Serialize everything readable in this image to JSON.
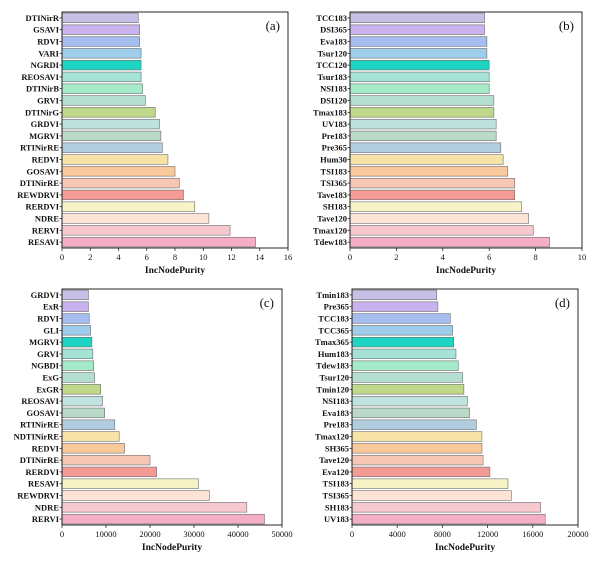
{
  "chart_data": [
    {
      "type": "bar",
      "orientation": "horizontal",
      "panel_label": "(a)",
      "xlabel": "IncNodePurity",
      "xlim": [
        0,
        16
      ],
      "xticks": [
        "0",
        "2",
        "4",
        "6",
        "8",
        "10",
        "12",
        "14",
        "16"
      ],
      "categories": [
        "DTINirR",
        "GSAVI",
        "RDVI",
        "VARI",
        "NGRDI",
        "REOSAVI",
        "DTINirB",
        "GRVI",
        "DTINirG",
        "GRDVI",
        "MGRVI",
        "RTINirRE",
        "REDVI",
        "GOSAVI",
        "DTINirRE",
        "REWDRVI",
        "RERDVI",
        "NDRE",
        "RERVI",
        "RESAVI"
      ],
      "values": [
        5.4,
        5.5,
        5.5,
        5.6,
        5.6,
        5.6,
        5.7,
        5.9,
        6.6,
        6.9,
        7.0,
        7.1,
        7.5,
        8.0,
        8.3,
        8.6,
        9.4,
        10.4,
        11.9,
        13.7
      ],
      "colors": [
        "#c7c0e6",
        "#c9b2ee",
        "#a6bdf0",
        "#9fcdec",
        "#1ed4c3",
        "#a6e3d6",
        "#a6ebc9",
        "#b4dfd0",
        "#bfd88a",
        "#bfe2de",
        "#bbd9c9",
        "#b3cde0",
        "#f8e3a7",
        "#f9c89b",
        "#f7c7b5",
        "#f39b94",
        "#f8f3c6",
        "#fde3d4",
        "#f6c9cf",
        "#f4aec6"
      ]
    },
    {
      "type": "bar",
      "orientation": "horizontal",
      "panel_label": "(b)",
      "xlabel": "IncNodePurity",
      "xlim": [
        0,
        10
      ],
      "xticks": [
        "0",
        "2",
        "4",
        "6",
        "8",
        "10"
      ],
      "categories": [
        "TCC183",
        "DSI365",
        "Eva183",
        "Tsur120",
        "TCC120",
        "Tsur183",
        "NSI183",
        "DSI120",
        "Tmax183",
        "UV183",
        "Pre183",
        "Pre365",
        "Hum30",
        "TSI183",
        "TSI365",
        "Tave183",
        "SH183",
        "Tave120",
        "Tmax120",
        "Tdew183"
      ],
      "values": [
        5.8,
        5.8,
        5.9,
        5.9,
        6.0,
        6.0,
        6.0,
        6.2,
        6.2,
        6.3,
        6.3,
        6.5,
        6.6,
        6.8,
        7.1,
        7.1,
        7.4,
        7.7,
        7.9,
        8.6
      ],
      "colors": [
        "#c7c0e6",
        "#c9b2ee",
        "#a6bdf0",
        "#9fcdec",
        "#1ed4c3",
        "#a6e3d6",
        "#a6ebc9",
        "#b4dfd0",
        "#bfd88a",
        "#bfe2de",
        "#bbd9c9",
        "#b3cde0",
        "#f8e3a7",
        "#f9c89b",
        "#f7c7b5",
        "#f39b94",
        "#f8f3c6",
        "#fde3d4",
        "#f6c9cf",
        "#f4aec6"
      ]
    },
    {
      "type": "bar",
      "orientation": "horizontal",
      "panel_label": "(c)",
      "xlabel": "IncNodePurity",
      "xlim": [
        0,
        50000
      ],
      "xticks": [
        "0",
        "10000",
        "20000",
        "30000",
        "40000",
        "50000"
      ],
      "categories": [
        "GRDVI",
        "ExR",
        "RDVI",
        "GLI",
        "MGRVI",
        "GRVI",
        "NGBDI",
        "ExG",
        "ExGR",
        "REOSAVI",
        "GOSAVI",
        "RTINirRE",
        "NDTINirRE",
        "REDVI",
        "DTINirRE",
        "RERDVI",
        "RESAVI",
        "REWDRVI",
        "NDRE",
        "RERVI"
      ],
      "values": [
        6000,
        6000,
        6200,
        6500,
        6800,
        7000,
        7200,
        7400,
        8800,
        9200,
        9700,
        12000,
        13000,
        14200,
        20000,
        21500,
        31000,
        33500,
        42000,
        46000
      ],
      "colors": [
        "#c7c0e6",
        "#c9b2ee",
        "#a6bdf0",
        "#9fcdec",
        "#1ed4c3",
        "#a6e3d6",
        "#a6ebc9",
        "#b4dfd0",
        "#bfd88a",
        "#bfe2de",
        "#bbd9c9",
        "#b3cde0",
        "#f8e3a7",
        "#f9c89b",
        "#f7c7b5",
        "#f39b94",
        "#f8f3c6",
        "#fde3d4",
        "#f6c9cf",
        "#f4aec6"
      ]
    },
    {
      "type": "bar",
      "orientation": "horizontal",
      "panel_label": "(d)",
      "xlabel": "IncNodePurity",
      "xlim": [
        0,
        20000
      ],
      "xticks": [
        "0",
        "4000",
        "8000",
        "12000",
        "16000",
        "20000"
      ],
      "categories": [
        "Tmin183",
        "Pre365",
        "TCC183",
        "TCC365",
        "Tmax365",
        "Hum183",
        "Tdew183",
        "Tsur120",
        "Tmin120",
        "NSI183",
        "Eva183",
        "Pre183",
        "Tmax120",
        "SH365",
        "Tave120",
        "Eva120",
        "TSI183",
        "TSI365",
        "SH183",
        "UV183"
      ],
      "values": [
        7500,
        7600,
        8700,
        8900,
        9000,
        9200,
        9400,
        9800,
        9900,
        10200,
        10400,
        11000,
        11500,
        11500,
        11600,
        12200,
        13800,
        14100,
        16700,
        17100
      ],
      "colors": [
        "#c7c0e6",
        "#c9b2ee",
        "#a6bdf0",
        "#9fcdec",
        "#1ed4c3",
        "#a6e3d6",
        "#a6ebc9",
        "#b4dfd0",
        "#bfd88a",
        "#bfe2de",
        "#bbd9c9",
        "#b3cde0",
        "#f8e3a7",
        "#f9c89b",
        "#f7c7b5",
        "#f39b94",
        "#f8f3c6",
        "#fde3d4",
        "#f6c9cf",
        "#f4aec6"
      ]
    }
  ]
}
